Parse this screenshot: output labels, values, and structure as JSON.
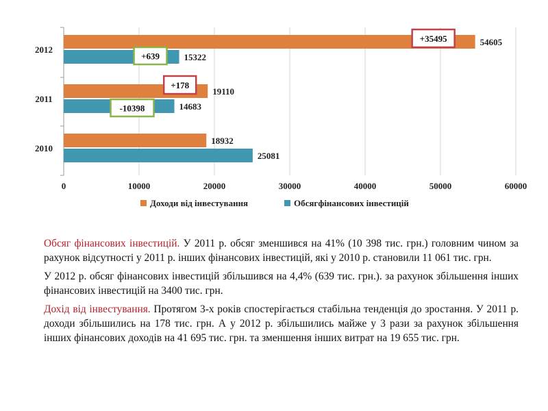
{
  "chart_data": {
    "type": "bar",
    "orientation": "horizontal",
    "categories": [
      "2010",
      "2011",
      "2012"
    ],
    "series": [
      {
        "name": "Доходи від інвестування",
        "color": "#e0803e",
        "values": [
          18932,
          19110,
          54605
        ]
      },
      {
        "name": "Обсягфінансових інвестицій",
        "color": "#3f98b0",
        "values": [
          25081,
          14683,
          15322
        ]
      }
    ],
    "xlim": [
      0,
      60000
    ],
    "xticks": [
      "0",
      "10000",
      "20000",
      "30000",
      "40000",
      "50000",
      "60000"
    ],
    "grid": true,
    "legend_position": "bottom",
    "annotations": [
      {
        "text": "+35495",
        "category": "2012",
        "series": 0,
        "border_color": "#c0434a"
      },
      {
        "text": "+639",
        "category": "2012",
        "series": 1,
        "border_color": "#8ab34a"
      },
      {
        "text": "+178",
        "category": "2011",
        "series": 0,
        "border_color": "#c0434a"
      },
      {
        "text": "-10398",
        "category": "2011",
        "series": 1,
        "border_color": "#8ab34a"
      }
    ]
  },
  "text": {
    "p1_highlight": "Обсяг фінансових інвестицій.",
    "p1_rest": " У 2011 р.  обсяг зменшився на 41% (10 398 тис. грн.) головним чином за рахунок відсутності у 2011 р. інших фінансових інвестицій, які у 2010 р. становили  11 061 тис. грн.",
    "p2": "У 2012 р. обсяг фінансових інвестицій збільшився на 4,4% (639 тис. грн.). за рахунок збільшення інших фінансових інвестицій на 3400 тис. грн.",
    "p3_highlight": "Дохід від інвестування.",
    "p3_rest": " Протягом 3-х років спостерігається стабільна тенденція до зростання.  У 2011 р. доходи збільшились на  178 тис. грн. А у 2012 р. збільшились  майже у 3  рази за рахунок збільшення  інших фінансових доходів на 41 695 тис. грн. та зменшення  інших витрат на 19 655 тис. грн."
  }
}
